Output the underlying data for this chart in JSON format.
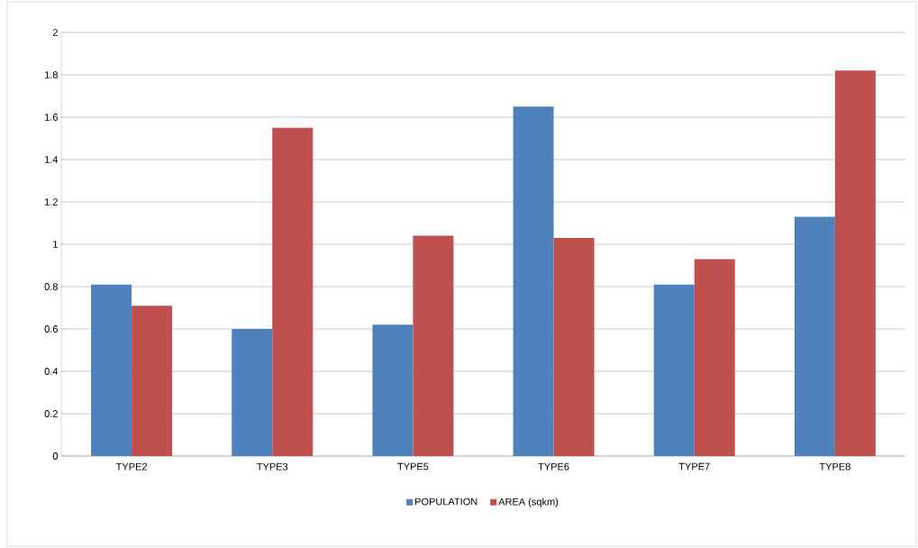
{
  "chart_data": {
    "type": "bar",
    "categories": [
      "TYPE2",
      "TYPE3",
      "TYPE5",
      "TYPE6",
      "TYPE7",
      "TYPE8"
    ],
    "series": [
      {
        "name": "POPULATION",
        "color": "#4f81bd",
        "values": [
          0.81,
          0.6,
          0.62,
          1.65,
          0.81,
          1.13
        ]
      },
      {
        "name": "AREA (sqkm)",
        "color": "#c0504d",
        "values": [
          0.71,
          1.55,
          1.04,
          1.03,
          0.93,
          1.82
        ]
      }
    ],
    "ylim": [
      0,
      2
    ],
    "yticks": [
      0,
      0.2,
      0.4,
      0.6,
      0.8,
      1,
      1.2,
      1.4,
      1.6,
      1.8,
      2
    ],
    "grid": "y",
    "legend": "bottom"
  }
}
